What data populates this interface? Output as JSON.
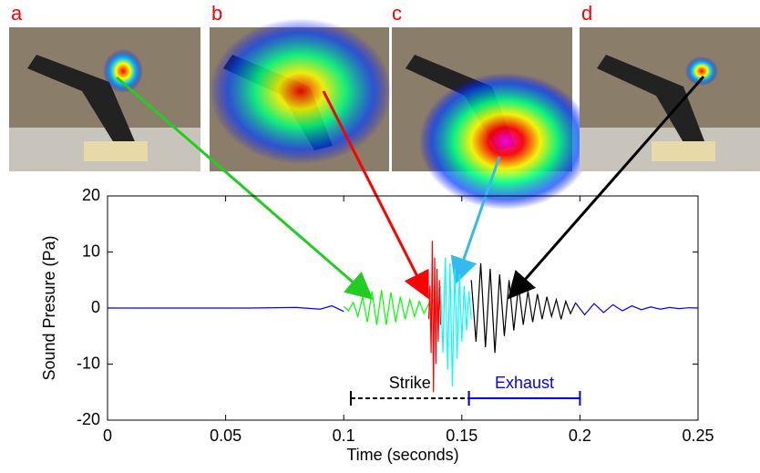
{
  "chart_data": {
    "type": "line",
    "x_label": "Time (seconds)",
    "y_label": "Sound Presure (Pa)",
    "xlim": [
      0,
      0.25
    ],
    "xticks": [
      0,
      0.05,
      0.1,
      0.15,
      0.2,
      0.25
    ],
    "ylim": [
      -20,
      20
    ],
    "yticks": [
      -20,
      -10,
      0,
      10,
      20
    ],
    "panels": [
      {
        "label": "a"
      },
      {
        "label": "b"
      },
      {
        "label": "c"
      },
      {
        "label": "d"
      }
    ],
    "series": [
      {
        "color": "#0000ff",
        "x": [
          0,
          0.02,
          0.04,
          0.06,
          0.08,
          0.09,
          0.095,
          0.1
        ],
        "values": [
          0,
          0,
          0,
          0,
          0.1,
          -0.2,
          0.4,
          -0.6
        ]
      },
      {
        "color": "#00ff00",
        "x": [
          0.1,
          0.102,
          0.104,
          0.106,
          0.108,
          0.11,
          0.112,
          0.114,
          0.116,
          0.118,
          0.12,
          0.122,
          0.124,
          0.126,
          0.128,
          0.13,
          0.132,
          0.134,
          0.136
        ],
        "values": [
          0.3,
          -0.5,
          1,
          -1.5,
          2,
          -2.5,
          3,
          -3,
          3.2,
          -3,
          2.8,
          -2.5,
          2,
          -2,
          1.5,
          -1.5,
          1.2,
          -1,
          0.8
        ]
      },
      {
        "color": "#ff0000",
        "x": [
          0.136,
          0.1365,
          0.137,
          0.1375,
          0.138,
          0.1385,
          0.139,
          0.1395,
          0.14,
          0.1405,
          0.141
        ],
        "values": [
          -2,
          4,
          -8,
          12,
          -15,
          9,
          -10,
          7,
          -6,
          5,
          -3
        ]
      },
      {
        "color": "#00ffff",
        "x": [
          0.141,
          0.142,
          0.143,
          0.144,
          0.145,
          0.146,
          0.147,
          0.148,
          0.149,
          0.15,
          0.151,
          0.152,
          0.153,
          0.154
        ],
        "values": [
          4,
          -8,
          9,
          -11,
          8,
          -14,
          7,
          -9,
          6,
          -6,
          4,
          -4,
          3,
          -2
        ]
      },
      {
        "color": "#000000",
        "x": [
          0.154,
          0.156,
          0.158,
          0.16,
          0.162,
          0.164,
          0.166,
          0.168,
          0.17,
          0.172,
          0.174,
          0.176,
          0.178,
          0.18,
          0.182,
          0.184,
          0.186,
          0.188,
          0.19,
          0.192,
          0.194,
          0.196,
          0.198
        ],
        "values": [
          5,
          -6,
          8,
          -7,
          7,
          -8,
          6,
          -5,
          5,
          -4,
          4,
          -3,
          3,
          -2.5,
          2.5,
          -2,
          2,
          -1.5,
          1.5,
          -2,
          1.2,
          -1,
          0.8
        ]
      },
      {
        "color": "#0000ff",
        "x": [
          0.198,
          0.202,
          0.206,
          0.21,
          0.214,
          0.218,
          0.222,
          0.226,
          0.23,
          0.234,
          0.238,
          0.242,
          0.246,
          0.25
        ],
        "values": [
          1,
          -1.2,
          0.8,
          -0.8,
          0.6,
          -0.5,
          0.4,
          -0.3,
          0.2,
          -0.2,
          0.1,
          -0.1,
          0.05,
          0
        ]
      }
    ],
    "annotations": [
      {
        "text": "Strike",
        "x": [
          0.103,
          0.153
        ],
        "color": "#000000",
        "style": "dashed"
      },
      {
        "text": "Exhaust",
        "x": [
          0.153,
          0.2
        ],
        "color": "#0000ff",
        "style": "solid"
      }
    ]
  }
}
